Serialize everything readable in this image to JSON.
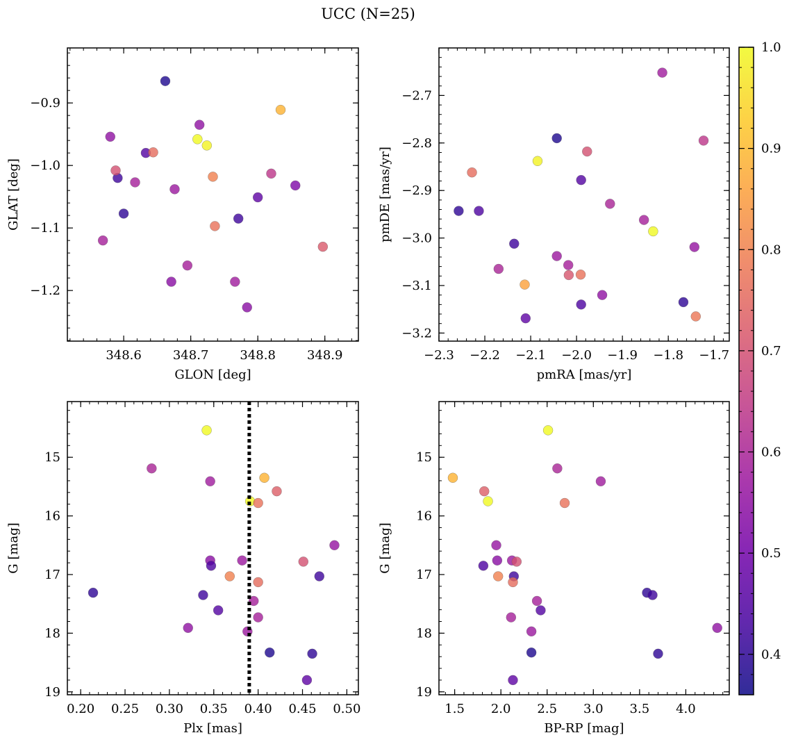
{
  "figure": {
    "title": "UCC (N=25)",
    "colormap": "plasma",
    "colorbar": {
      "range": [
        0.36,
        1.0
      ],
      "ticks": [
        "0.4",
        "0.5",
        "0.6",
        "0.7",
        "0.8",
        "0.9",
        "1.0"
      ],
      "tick_values": [
        0.4,
        0.5,
        0.6,
        0.7,
        0.8,
        0.9,
        1.0
      ],
      "colors": [
        "#0d0887",
        "#46039f",
        "#7201a8",
        "#9c179e",
        "#bd3786",
        "#d8576b",
        "#ed7953",
        "#fb9f3a",
        "#fdca26",
        "#f0f921"
      ]
    },
    "point_alpha": 0.8,
    "point_edge_color": "#555555"
  },
  "chart_data": [
    {
      "id": "p1",
      "type": "scatter",
      "xlabel": "GLON [deg]",
      "ylabel": "GLAT [deg]",
      "xlim": [
        348.516,
        348.95
      ],
      "ylim": [
        -1.281,
        -0.812
      ],
      "invert_y": false,
      "xticks": [
        348.6,
        348.7,
        348.8,
        348.9
      ],
      "xtick_labels": [
        "348.6",
        "348.7",
        "348.8",
        "348.9"
      ],
      "yticks": [
        -0.9,
        -1.0,
        -1.1,
        -1.2
      ],
      "ytick_labels": [
        "−0.9",
        "−1.0",
        "−1.1",
        "−1.2"
      ],
      "x_minor_step": 0.02,
      "y_minor_step": 0.02,
      "vline": null,
      "points": [
        {
          "x": 348.662,
          "y": -0.865,
          "c": 0.38
        },
        {
          "x": 348.58,
          "y": -0.954,
          "c": 0.55
        },
        {
          "x": 348.591,
          "y": -1.02,
          "c": 0.42
        },
        {
          "x": 348.6,
          "y": -1.077,
          "c": 0.4
        },
        {
          "x": 348.569,
          "y": -1.12,
          "c": 0.59
        },
        {
          "x": 348.588,
          "y": -1.008,
          "c": 0.7
        },
        {
          "x": 348.617,
          "y": -1.027,
          "c": 0.59
        },
        {
          "x": 348.633,
          "y": -0.98,
          "c": 0.45
        },
        {
          "x": 348.644,
          "y": -0.979,
          "c": 0.76
        },
        {
          "x": 348.671,
          "y": -1.186,
          "c": 0.54
        },
        {
          "x": 348.676,
          "y": -1.038,
          "c": 0.57
        },
        {
          "x": 348.695,
          "y": -1.16,
          "c": 0.59
        },
        {
          "x": 348.71,
          "y": -0.958,
          "c": 1.0
        },
        {
          "x": 348.713,
          "y": -0.935,
          "c": 0.55
        },
        {
          "x": 348.724,
          "y": -0.968,
          "c": 0.99
        },
        {
          "x": 348.733,
          "y": -1.018,
          "c": 0.8
        },
        {
          "x": 348.736,
          "y": -1.097,
          "c": 0.77
        },
        {
          "x": 348.766,
          "y": -1.186,
          "c": 0.58
        },
        {
          "x": 348.771,
          "y": -1.085,
          "c": 0.42
        },
        {
          "x": 348.784,
          "y": -1.227,
          "c": 0.54
        },
        {
          "x": 348.8,
          "y": -1.051,
          "c": 0.47
        },
        {
          "x": 348.82,
          "y": -1.013,
          "c": 0.64
        },
        {
          "x": 348.834,
          "y": -0.911,
          "c": 0.89
        },
        {
          "x": 348.856,
          "y": -1.032,
          "c": 0.52
        },
        {
          "x": 348.897,
          "y": -1.13,
          "c": 0.72
        }
      ]
    },
    {
      "id": "p2",
      "type": "scatter",
      "xlabel": "pmRA [mas/yr]",
      "ylabel": "pmDE [mas/yr]",
      "xlim": [
        -2.3,
        -1.667
      ],
      "ylim": [
        -3.217,
        -2.6
      ],
      "invert_y": false,
      "xticks": [
        -2.3,
        -2.2,
        -2.1,
        -2.0,
        -1.9,
        -1.8,
        -1.7
      ],
      "xtick_labels": [
        "−2.3",
        "−2.2",
        "−2.1",
        "−2.0",
        "−1.9",
        "−1.8",
        "−1.7"
      ],
      "yticks": [
        -2.7,
        -2.8,
        -2.9,
        -3.0,
        -3.1,
        -3.2
      ],
      "ytick_labels": [
        "−2.7",
        "−2.8",
        "−2.9",
        "−3.0",
        "−3.1",
        "−3.2"
      ],
      "x_minor_step": 0.02,
      "y_minor_step": 0.02,
      "vline": null,
      "points": [
        {
          "x": -1.813,
          "y": -2.652,
          "c": 0.58
        },
        {
          "x": -2.043,
          "y": -2.79,
          "c": 0.38
        },
        {
          "x": -1.723,
          "y": -2.795,
          "c": 0.64
        },
        {
          "x": -1.977,
          "y": -2.818,
          "c": 0.7
        },
        {
          "x": -2.085,
          "y": -2.838,
          "c": 0.99
        },
        {
          "x": -2.228,
          "y": -2.862,
          "c": 0.76
        },
        {
          "x": -1.99,
          "y": -2.878,
          "c": 0.45
        },
        {
          "x": -1.927,
          "y": -2.928,
          "c": 0.6
        },
        {
          "x": -2.257,
          "y": -2.943,
          "c": 0.4
        },
        {
          "x": -2.213,
          "y": -2.943,
          "c": 0.44
        },
        {
          "x": -1.853,
          "y": -2.962,
          "c": 0.59
        },
        {
          "x": -1.833,
          "y": -2.986,
          "c": 1.0
        },
        {
          "x": -2.136,
          "y": -3.012,
          "c": 0.42
        },
        {
          "x": -1.743,
          "y": -3.019,
          "c": 0.56
        },
        {
          "x": -2.043,
          "y": -3.038,
          "c": 0.57
        },
        {
          "x": -2.17,
          "y": -3.065,
          "c": 0.6
        },
        {
          "x": -2.018,
          "y": -3.057,
          "c": 0.59
        },
        {
          "x": -2.017,
          "y": -3.078,
          "c": 0.71
        },
        {
          "x": -1.991,
          "y": -3.077,
          "c": 0.77
        },
        {
          "x": -2.113,
          "y": -3.098,
          "c": 0.86
        },
        {
          "x": -1.944,
          "y": -3.12,
          "c": 0.55
        },
        {
          "x": -1.99,
          "y": -3.14,
          "c": 0.44
        },
        {
          "x": -1.767,
          "y": -3.135,
          "c": 0.4
        },
        {
          "x": -2.111,
          "y": -3.169,
          "c": 0.47
        },
        {
          "x": -1.74,
          "y": -3.165,
          "c": 0.78
        }
      ]
    },
    {
      "id": "p3",
      "type": "scatter",
      "xlabel": "Plx [mas]",
      "ylabel": "G [mag]",
      "xlim": [
        0.185,
        0.513
      ],
      "ylim": [
        19.05,
        14.05
      ],
      "invert_y": true,
      "xticks": [
        0.2,
        0.25,
        0.3,
        0.35,
        0.4,
        0.45,
        0.5
      ],
      "xtick_labels": [
        "0.20",
        "0.25",
        "0.30",
        "0.35",
        "0.40",
        "0.45",
        "0.50"
      ],
      "yticks": [
        15,
        16,
        17,
        18,
        19
      ],
      "ytick_labels": [
        "15",
        "16",
        "17",
        "18",
        "19"
      ],
      "x_minor_step": 0.01,
      "y_minor_step": 0.2,
      "vline": 0.39,
      "points": [
        {
          "x": 0.342,
          "y": 14.54,
          "c": 1.0
        },
        {
          "x": 0.28,
          "y": 15.19,
          "c": 0.6
        },
        {
          "x": 0.346,
          "y": 15.41,
          "c": 0.58
        },
        {
          "x": 0.407,
          "y": 15.35,
          "c": 0.89
        },
        {
          "x": 0.421,
          "y": 15.58,
          "c": 0.73
        },
        {
          "x": 0.391,
          "y": 15.75,
          "c": 1.0
        },
        {
          "x": 0.4,
          "y": 15.78,
          "c": 0.77
        },
        {
          "x": 0.486,
          "y": 16.5,
          "c": 0.56
        },
        {
          "x": 0.346,
          "y": 16.76,
          "c": 0.54
        },
        {
          "x": 0.382,
          "y": 16.76,
          "c": 0.57
        },
        {
          "x": 0.451,
          "y": 16.78,
          "c": 0.7
        },
        {
          "x": 0.347,
          "y": 16.85,
          "c": 0.44
        },
        {
          "x": 0.368,
          "y": 17.03,
          "c": 0.8
        },
        {
          "x": 0.469,
          "y": 17.03,
          "c": 0.42
        },
        {
          "x": 0.4,
          "y": 17.13,
          "c": 0.76
        },
        {
          "x": 0.214,
          "y": 17.31,
          "c": 0.4
        },
        {
          "x": 0.338,
          "y": 17.35,
          "c": 0.42
        },
        {
          "x": 0.395,
          "y": 17.45,
          "c": 0.59
        },
        {
          "x": 0.355,
          "y": 17.61,
          "c": 0.45
        },
        {
          "x": 0.4,
          "y": 17.73,
          "c": 0.59
        },
        {
          "x": 0.321,
          "y": 17.91,
          "c": 0.55
        },
        {
          "x": 0.388,
          "y": 17.97,
          "c": 0.57
        },
        {
          "x": 0.413,
          "y": 18.33,
          "c": 0.38
        },
        {
          "x": 0.461,
          "y": 18.35,
          "c": 0.4
        },
        {
          "x": 0.455,
          "y": 18.8,
          "c": 0.47
        }
      ]
    },
    {
      "id": "p4",
      "type": "scatter",
      "xlabel": "BP-RP [mag]",
      "ylabel": "G [mag]",
      "xlim": [
        1.33,
        4.47
      ],
      "ylim": [
        19.05,
        14.05
      ],
      "invert_y": true,
      "xticks": [
        1.5,
        2.0,
        2.5,
        3.0,
        3.5,
        4.0
      ],
      "xtick_labels": [
        "1.5",
        "2.0",
        "2.5",
        "3.0",
        "3.5",
        "4.0"
      ],
      "yticks": [
        15,
        16,
        17,
        18,
        19
      ],
      "ytick_labels": [
        "15",
        "16",
        "17",
        "18",
        "19"
      ],
      "x_minor_step": 0.1,
      "y_minor_step": 0.2,
      "vline": null,
      "points": [
        {
          "x": 2.51,
          "y": 14.54,
          "c": 1.0
        },
        {
          "x": 2.61,
          "y": 15.19,
          "c": 0.6
        },
        {
          "x": 3.08,
          "y": 15.41,
          "c": 0.58
        },
        {
          "x": 1.48,
          "y": 15.35,
          "c": 0.89
        },
        {
          "x": 1.82,
          "y": 15.58,
          "c": 0.73
        },
        {
          "x": 1.86,
          "y": 15.75,
          "c": 1.0
        },
        {
          "x": 2.69,
          "y": 15.78,
          "c": 0.77
        },
        {
          "x": 1.95,
          "y": 16.5,
          "c": 0.56
        },
        {
          "x": 1.96,
          "y": 16.76,
          "c": 0.54
        },
        {
          "x": 2.12,
          "y": 16.76,
          "c": 0.57
        },
        {
          "x": 2.17,
          "y": 16.78,
          "c": 0.7
        },
        {
          "x": 1.81,
          "y": 16.85,
          "c": 0.44
        },
        {
          "x": 1.97,
          "y": 17.03,
          "c": 0.8
        },
        {
          "x": 2.14,
          "y": 17.03,
          "c": 0.42
        },
        {
          "x": 2.13,
          "y": 17.13,
          "c": 0.76
        },
        {
          "x": 3.58,
          "y": 17.31,
          "c": 0.4
        },
        {
          "x": 3.64,
          "y": 17.35,
          "c": 0.42
        },
        {
          "x": 2.39,
          "y": 17.45,
          "c": 0.59
        },
        {
          "x": 2.43,
          "y": 17.61,
          "c": 0.45
        },
        {
          "x": 2.11,
          "y": 17.73,
          "c": 0.59
        },
        {
          "x": 4.34,
          "y": 17.91,
          "c": 0.55
        },
        {
          "x": 2.33,
          "y": 17.97,
          "c": 0.57
        },
        {
          "x": 2.33,
          "y": 18.33,
          "c": 0.38
        },
        {
          "x": 3.7,
          "y": 18.35,
          "c": 0.4
        },
        {
          "x": 2.13,
          "y": 18.8,
          "c": 0.47
        }
      ]
    }
  ]
}
